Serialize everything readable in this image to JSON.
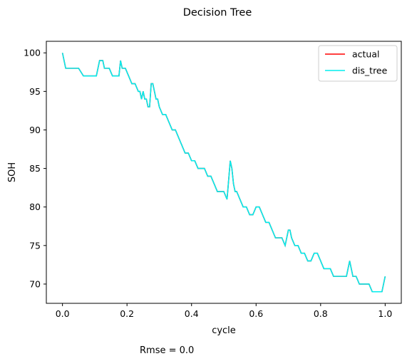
{
  "chart_data": {
    "type": "line",
    "title": "Decision Tree",
    "xlabel": "cycle",
    "ylabel": "SOH",
    "xlim": [
      -0.05,
      1.05
    ],
    "ylim": [
      67.5,
      101.5
    ],
    "xticks": [
      0.0,
      0.2,
      0.4,
      0.6,
      0.8,
      1.0
    ],
    "xtick_labels": [
      "0.0",
      "0.2",
      "0.4",
      "0.6",
      "0.8",
      "1.0"
    ],
    "yticks": [
      70,
      75,
      80,
      85,
      90,
      95,
      100
    ],
    "ytick_labels": [
      "70",
      "75",
      "80",
      "85",
      "90",
      "95",
      "100"
    ],
    "grid": false,
    "legend_position": "top-right",
    "footer_text": "Rmse = 0.0",
    "colors": {
      "actual": "#ff0000",
      "dis_tree": "#00eeee"
    },
    "x": [
      0.0,
      0.01,
      0.02,
      0.035,
      0.05,
      0.065,
      0.08,
      0.095,
      0.105,
      0.115,
      0.125,
      0.13,
      0.145,
      0.155,
      0.165,
      0.175,
      0.18,
      0.185,
      0.195,
      0.205,
      0.215,
      0.225,
      0.235,
      0.24,
      0.245,
      0.25,
      0.255,
      0.26,
      0.265,
      0.27,
      0.275,
      0.28,
      0.285,
      0.29,
      0.295,
      0.3,
      0.31,
      0.32,
      0.33,
      0.34,
      0.35,
      0.36,
      0.37,
      0.38,
      0.39,
      0.4,
      0.41,
      0.42,
      0.43,
      0.44,
      0.45,
      0.46,
      0.47,
      0.48,
      0.49,
      0.5,
      0.51,
      0.52,
      0.525,
      0.53,
      0.535,
      0.54,
      0.55,
      0.56,
      0.57,
      0.58,
      0.59,
      0.6,
      0.61,
      0.62,
      0.63,
      0.64,
      0.65,
      0.66,
      0.67,
      0.68,
      0.69,
      0.7,
      0.705,
      0.71,
      0.72,
      0.73,
      0.74,
      0.75,
      0.76,
      0.77,
      0.78,
      0.79,
      0.8,
      0.81,
      0.82,
      0.83,
      0.84,
      0.85,
      0.86,
      0.87,
      0.88,
      0.89,
      0.895,
      0.9,
      0.91,
      0.92,
      0.93,
      0.94,
      0.95,
      0.96,
      0.97,
      0.98,
      0.99,
      1.0
    ],
    "series": [
      {
        "name": "actual",
        "values": [
          100,
          98,
          98,
          98,
          98,
          97,
          97,
          97,
          97,
          99,
          99,
          98,
          98,
          97,
          97,
          97,
          99,
          98,
          98,
          97,
          96,
          96,
          95,
          95,
          94,
          95,
          94,
          94,
          93,
          93,
          96,
          96,
          95,
          94,
          94,
          93,
          92,
          92,
          91,
          90,
          90,
          89,
          88,
          87,
          87,
          86,
          86,
          85,
          85,
          85,
          84,
          84,
          83,
          82,
          82,
          82,
          81,
          86,
          85,
          83,
          82,
          82,
          81,
          80,
          80,
          79,
          79,
          80,
          80,
          79,
          78,
          78,
          77,
          76,
          76,
          76,
          75,
          77,
          77,
          76,
          75,
          75,
          74,
          74,
          73,
          73,
          74,
          74,
          73,
          72,
          72,
          72,
          71,
          71,
          71,
          71,
          71,
          73,
          72,
          71,
          71,
          70,
          70,
          70,
          70,
          69,
          69,
          69,
          69,
          71
        ]
      },
      {
        "name": "dis_tree",
        "values": [
          100,
          98,
          98,
          98,
          98,
          97,
          97,
          97,
          97,
          99,
          99,
          98,
          98,
          97,
          97,
          97,
          99,
          98,
          98,
          97,
          96,
          96,
          95,
          95,
          94,
          95,
          94,
          94,
          93,
          93,
          96,
          96,
          95,
          94,
          94,
          93,
          92,
          92,
          91,
          90,
          90,
          89,
          88,
          87,
          87,
          86,
          86,
          85,
          85,
          85,
          84,
          84,
          83,
          82,
          82,
          82,
          81,
          86,
          85,
          83,
          82,
          82,
          81,
          80,
          80,
          79,
          79,
          80,
          80,
          79,
          78,
          78,
          77,
          76,
          76,
          76,
          75,
          77,
          77,
          76,
          75,
          75,
          74,
          74,
          73,
          73,
          74,
          74,
          73,
          72,
          72,
          72,
          71,
          71,
          71,
          71,
          71,
          73,
          72,
          71,
          71,
          70,
          70,
          70,
          70,
          69,
          69,
          69,
          69,
          71
        ]
      }
    ]
  }
}
